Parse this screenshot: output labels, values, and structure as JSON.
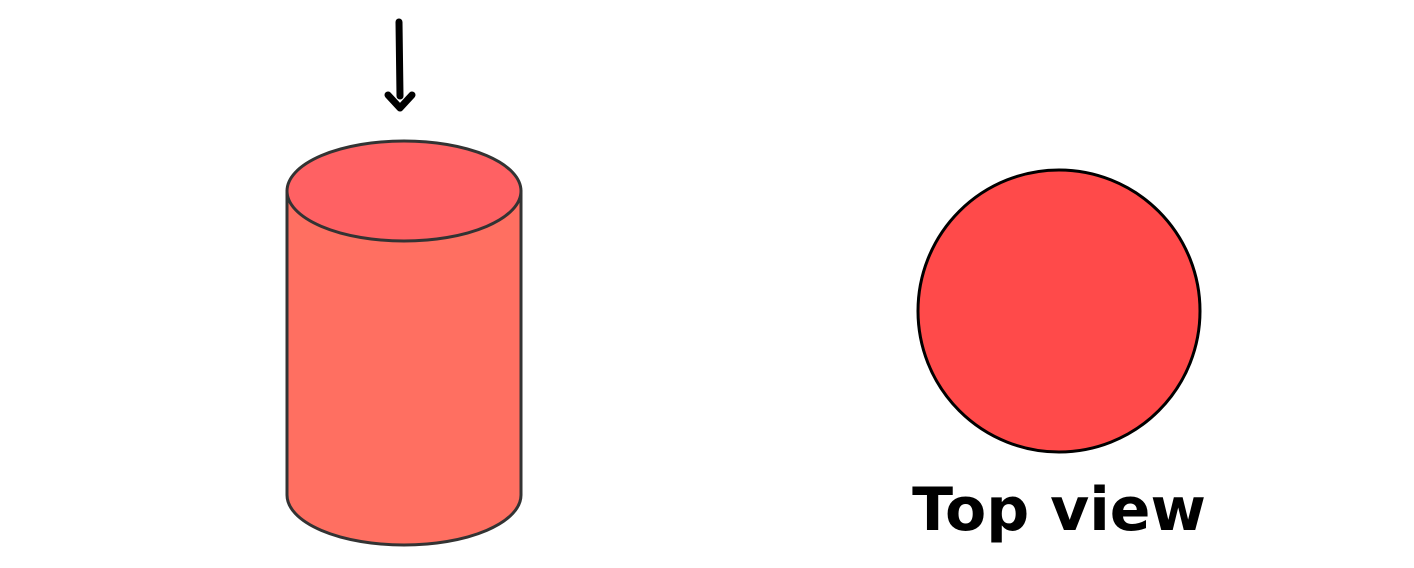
{
  "colors": {
    "cylinder_body": "#FF6F61",
    "cylinder_top": "#FF6163",
    "circle_fill": "#FF4A4A",
    "outline": "#333333",
    "arrow": "#000000",
    "text": "#000000"
  },
  "icons": {
    "arrow": "down-arrow-icon"
  },
  "labels": {
    "top_view": "Top view"
  }
}
